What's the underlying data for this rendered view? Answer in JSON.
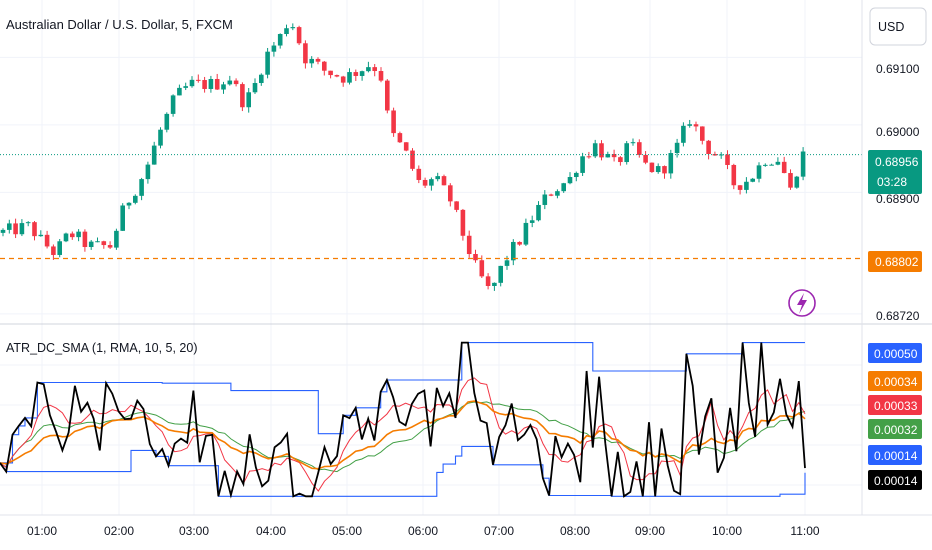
{
  "header": {
    "symbol_title": "Australian Dollar / U.S. Dollar, 5, FXCM",
    "currency_button": "USD"
  },
  "price_axis": {
    "ticks": [
      "0.69100",
      "0.69000",
      "0.68900",
      "0.68720"
    ],
    "current_price": "0.68956",
    "countdown": "03:28",
    "level_price": "0.68802",
    "colors": {
      "current": "#089981",
      "level": "#f57c00",
      "up": "#089981",
      "down": "#f23645"
    }
  },
  "indicator": {
    "title": "ATR_DC_SMA (1, RMA, 10, 5, 20)",
    "value_labels": [
      {
        "text": "0.00050",
        "color": "#2962ff"
      },
      {
        "text": "0.00034",
        "color": "#f57c00"
      },
      {
        "text": "0.00033",
        "color": "#f23645"
      },
      {
        "text": "0.00032",
        "color": "#43a047"
      },
      {
        "text": "0.00014",
        "color": "#2962ff"
      },
      {
        "text": "0.00014",
        "color": "#000000"
      }
    ]
  },
  "time_axis": {
    "labels": [
      "01:00",
      "02:00",
      "03:00",
      "04:00",
      "05:00",
      "06:00",
      "07:00",
      "08:00",
      "09:00",
      "10:00",
      "11:00"
    ]
  },
  "icons": {
    "alert": "lightning-bolt-icon"
  },
  "chart_data": [
    {
      "type": "candlestick",
      "title": "Australian Dollar / U.S. Dollar, 5, FXCM",
      "x_labels": [
        "01:00",
        "02:00",
        "03:00",
        "04:00",
        "05:00",
        "06:00",
        "07:00",
        "08:00",
        "09:00",
        "10:00",
        "11:00"
      ],
      "ylim": [
        0.68705,
        0.69185
      ],
      "y_ticks": [
        0.691,
        0.69,
        0.689,
        0.6872
      ],
      "current_price": 0.68956,
      "horizontal_line": 0.68802,
      "path_points": [
        [
          0,
          0.6884
        ],
        [
          30,
          0.6885
        ],
        [
          40,
          0.6883
        ],
        [
          55,
          0.6881
        ],
        [
          70,
          0.6884
        ],
        [
          90,
          0.6882
        ],
        [
          110,
          0.6882
        ],
        [
          125,
          0.6888
        ],
        [
          145,
          0.6893
        ],
        [
          160,
          0.6899
        ],
        [
          175,
          0.6904
        ],
        [
          190,
          0.6906
        ],
        [
          205,
          0.6906
        ],
        [
          215,
          0.6906
        ],
        [
          230,
          0.6907
        ],
        [
          245,
          0.6903
        ],
        [
          255,
          0.6906
        ],
        [
          265,
          0.691
        ],
        [
          280,
          0.6913
        ],
        [
          290,
          0.6916
        ],
        [
          305,
          0.691
        ],
        [
          325,
          0.6908
        ],
        [
          345,
          0.6907
        ],
        [
          370,
          0.6909
        ],
        [
          380,
          0.6908
        ],
        [
          390,
          0.6899
        ],
        [
          405,
          0.6896
        ],
        [
          420,
          0.6891
        ],
        [
          435,
          0.6892
        ],
        [
          450,
          0.6889
        ],
        [
          460,
          0.6885
        ],
        [
          475,
          0.6879
        ],
        [
          490,
          0.6875
        ],
        [
          505,
          0.688
        ],
        [
          520,
          0.6883
        ],
        [
          535,
          0.6887
        ],
        [
          550,
          0.689
        ],
        [
          570,
          0.6892
        ],
        [
          580,
          0.6895
        ],
        [
          595,
          0.6897
        ],
        [
          615,
          0.6894
        ],
        [
          630,
          0.6897
        ],
        [
          645,
          0.6894
        ],
        [
          660,
          0.6893
        ],
        [
          675,
          0.6896
        ],
        [
          690,
          0.6901
        ],
        [
          705,
          0.6897
        ],
        [
          720,
          0.6895
        ],
        [
          735,
          0.6891
        ],
        [
          750,
          0.6892
        ],
        [
          765,
          0.6895
        ],
        [
          780,
          0.6895
        ],
        [
          790,
          0.689
        ],
        [
          800,
          0.6895
        ],
        [
          805,
          0.6896
        ]
      ]
    },
    {
      "type": "line",
      "title": "ATR_DC_SMA (1, RMA, 10, 5, 20)",
      "ylim": [
        0.0,
        0.00058
      ],
      "series": [
        {
          "name": "",
          "color": "#000000",
          "last": 0.00014
        },
        {
          "name": "",
          "color": "#2962ff",
          "last": 0.0005
        },
        {
          "name": "",
          "color": "#2962ff",
          "last": 0.00014
        },
        {
          "name": "",
          "color": "#f57c00",
          "last": 0.00034
        },
        {
          "name": "",
          "color": "#f23645",
          "last": 0.00033
        },
        {
          "name": "",
          "color": "#43a047",
          "last": 0.00032
        }
      ]
    }
  ]
}
